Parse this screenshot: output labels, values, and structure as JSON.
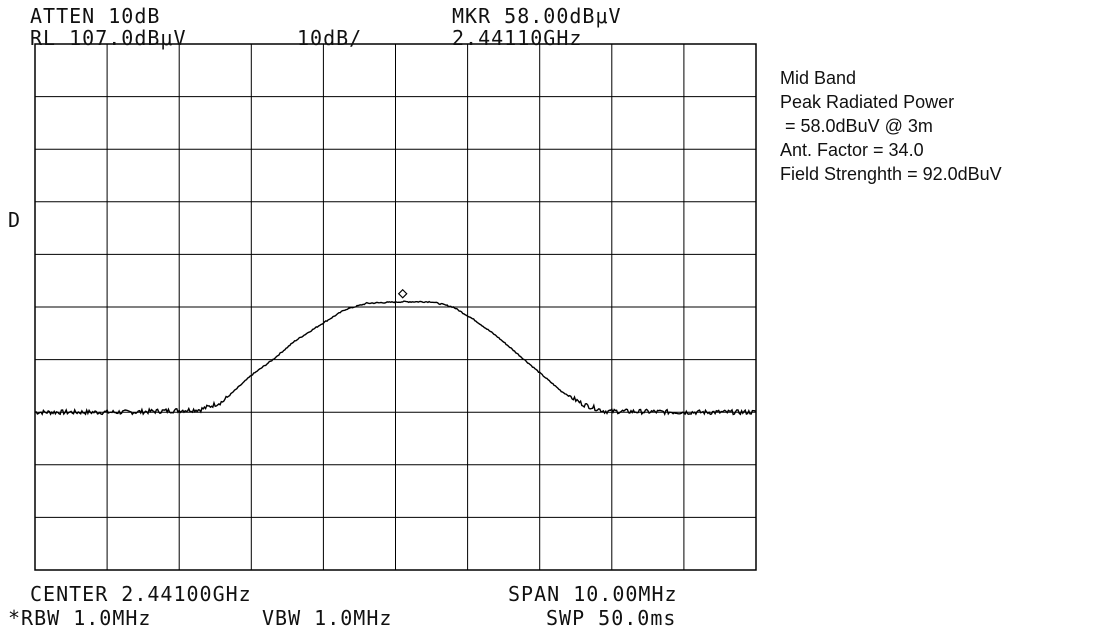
{
  "header": {
    "atten": "ATTEN 10dB",
    "ref_level": "RL 107.0dBμV",
    "scale": "10dB/",
    "marker_level": "MKR 58.00dBμV",
    "marker_freq": "2.44110GHz"
  },
  "side_label": "D",
  "footer": {
    "center": "CENTER 2.44100GHz",
    "span": "SPAN 10.00MHz",
    "rbw": "*RBW 1.0MHz",
    "vbw": "VBW 1.0MHz",
    "sweep": "SWP 50.0ms"
  },
  "notes": [
    "Mid Band",
    "Peak Radiated Power",
    " = 58.0dBuV @ 3m",
    "Ant. Factor = 34.0",
    "Field Strenghth = 92.0dBuV"
  ],
  "colors": {
    "trace": "#000000",
    "grid": "#000000",
    "background": "#ffffff"
  },
  "chart_data": {
    "type": "line",
    "title": "",
    "xlabel": "",
    "ylabel": "",
    "x_unit": "GHz",
    "y_unit": "dBμV",
    "xlim": [
      2.436,
      2.446
    ],
    "ylim": [
      7.0,
      107.0
    ],
    "grid": true,
    "grid_divisions": {
      "x": 10,
      "y": 10
    },
    "marker": {
      "x": 2.4411,
      "y": 58.0
    },
    "series": [
      {
        "values": [
          [
            2.436,
            37.0
          ],
          [
            2.4373,
            37.0
          ],
          [
            2.4383,
            37.5
          ],
          [
            2.4386,
            39.0
          ],
          [
            2.4388,
            41.5
          ],
          [
            2.439,
            44.0
          ],
          [
            2.4393,
            47.0
          ],
          [
            2.4396,
            50.5
          ],
          [
            2.44,
            54.0
          ],
          [
            2.4403,
            56.5
          ],
          [
            2.4406,
            57.7
          ],
          [
            2.4411,
            58.0
          ],
          [
            2.4415,
            58.0
          ],
          [
            2.4418,
            57.0
          ],
          [
            2.4421,
            54.5
          ],
          [
            2.4424,
            51.5
          ],
          [
            2.4427,
            48.0
          ],
          [
            2.443,
            44.5
          ],
          [
            2.4433,
            41.0
          ],
          [
            2.4436,
            38.5
          ],
          [
            2.4439,
            37.2
          ],
          [
            2.445,
            37.0
          ],
          [
            2.446,
            37.0
          ]
        ]
      }
    ]
  }
}
